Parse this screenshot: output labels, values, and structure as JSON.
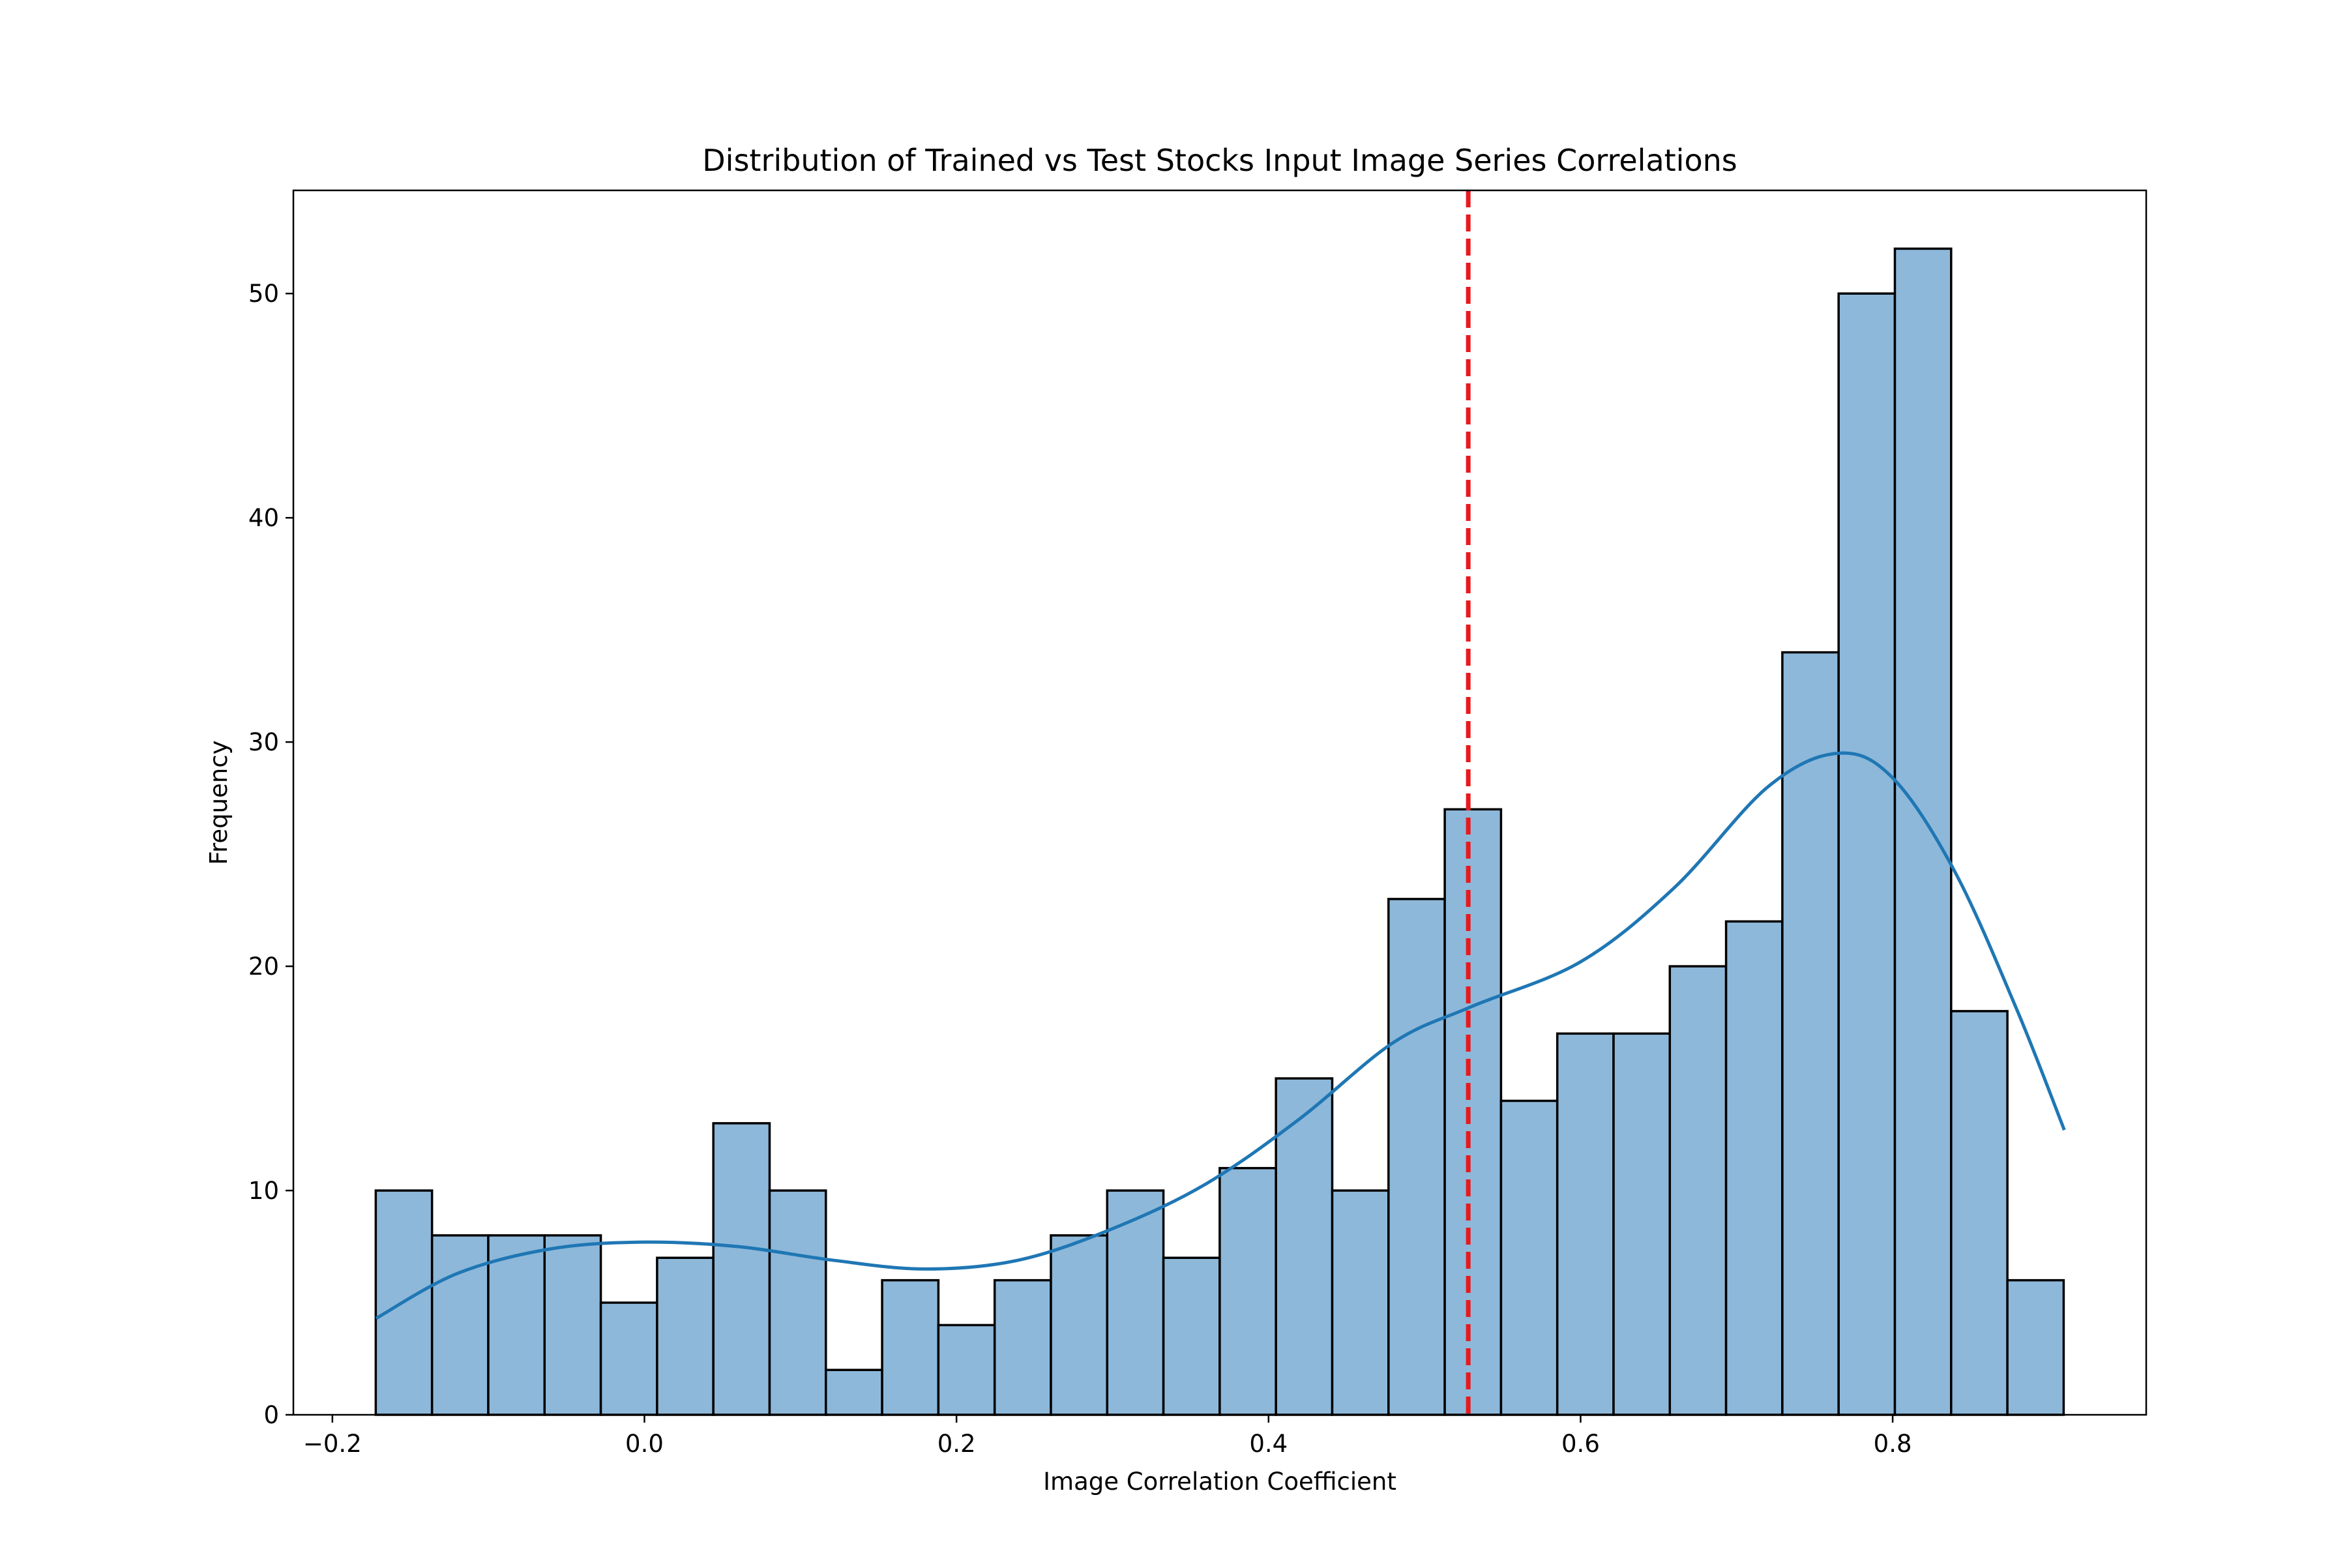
{
  "chart_data": {
    "type": "bar",
    "title": "Distribution of Trained vs Test Stocks Input Image Series Correlations",
    "xlabel": "Image Correlation Coefficient",
    "ylabel": "Frequency",
    "xlim": [
      -0.225,
      0.9625
    ],
    "ylim": [
      0,
      54.6
    ],
    "xticks": [
      -0.2,
      0.0,
      0.2,
      0.4,
      0.6,
      0.8
    ],
    "xtick_labels": [
      "−0.2",
      "0.0",
      "0.2",
      "0.4",
      "0.6",
      "0.8"
    ],
    "yticks": [
      0,
      10,
      20,
      30,
      40,
      50
    ],
    "ytick_labels": [
      "0",
      "10",
      "20",
      "30",
      "40",
      "50"
    ],
    "grid": false,
    "bin_start": -0.1722,
    "bin_width": 0.03606,
    "values": [
      10,
      8,
      8,
      8,
      5,
      7,
      13,
      10,
      2,
      6,
      4,
      6,
      8,
      10,
      7,
      11,
      15,
      10,
      23,
      27,
      14,
      17,
      17,
      20,
      22,
      34,
      50,
      52,
      18,
      6
    ],
    "bar_color": "#8db8da",
    "bar_edge_color": "#000000",
    "kde": {
      "color": "#1f77b4",
      "x": [
        -0.172,
        -0.12,
        -0.06,
        0.0,
        0.06,
        0.12,
        0.18,
        0.24,
        0.3,
        0.36,
        0.42,
        0.48,
        0.53,
        0.6,
        0.66,
        0.72,
        0.765,
        0.8,
        0.84,
        0.88,
        0.91
      ],
      "y": [
        4.3,
        6.3,
        7.4,
        7.7,
        7.5,
        6.9,
        6.5,
        6.9,
        8.3,
        10.3,
        13.2,
        16.6,
        18.2,
        20.2,
        23.5,
        28.0,
        29.5,
        28.4,
        24.2,
        18.0,
        12.7
      ]
    },
    "vline": {
      "x": 0.528,
      "color": "#e8191d",
      "style": "dashed"
    }
  }
}
